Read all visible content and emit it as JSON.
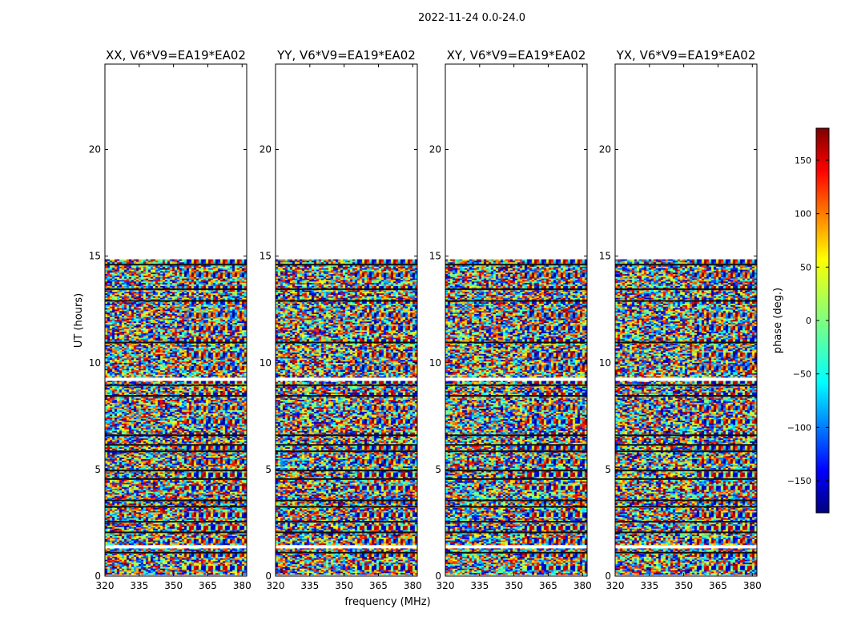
{
  "suptitle": "2022-11-24 0.0-24.0",
  "ylabel": "UT (hours)",
  "xlabel": "frequency (MHz)",
  "chart_data": {
    "type": "heatmap",
    "title": "2022-11-24 0.0-24.0",
    "xlabel": "frequency (MHz)",
    "ylabel": "UT (hours)",
    "xlim": [
      320,
      382
    ],
    "ylim": [
      0,
      24
    ],
    "xticks": [
      320,
      335,
      350,
      365,
      380
    ],
    "yticks": [
      0,
      5,
      10,
      15,
      20
    ],
    "data_ut_range": [
      0.05,
      14.85
    ],
    "colorbar": {
      "label": "phase (deg.)",
      "range": [
        -180,
        180
      ],
      "ticks": [
        -150,
        -100,
        -50,
        0,
        50,
        100,
        150
      ],
      "colormap": "jet"
    },
    "panels": [
      {
        "title": "XX, V6*V9=EA19*EA02",
        "polarization": "XX"
      },
      {
        "title": "YY, V6*V9=EA19*EA02",
        "polarization": "YY"
      },
      {
        "title": "XY, V6*V9=EA19*EA02",
        "polarization": "XY"
      },
      {
        "title": "YX, V6*V9=EA19*EA02",
        "polarization": "YX"
      }
    ],
    "blank_ut_bands": [
      [
        1.3,
        1.45
      ],
      [
        9.15,
        9.3
      ],
      [
        14.85,
        24
      ]
    ],
    "dark_ut_lines": [
      1.1,
      2.05,
      2.55,
      3.25,
      3.55,
      4.55,
      4.95,
      5.85,
      6.15,
      6.6,
      8.45,
      8.95,
      10.95,
      12.9,
      13.45,
      14.6
    ]
  }
}
